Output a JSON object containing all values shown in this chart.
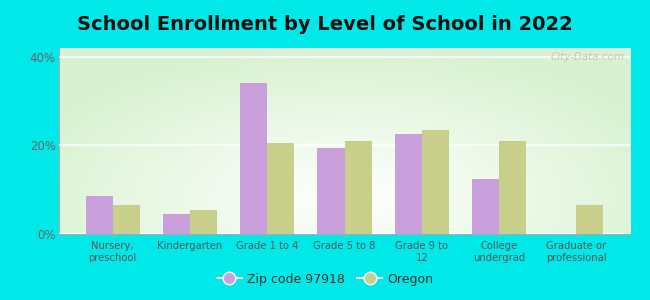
{
  "title": "School Enrollment by Level of School in 2022",
  "categories": [
    "Nursery,\npreschool",
    "Kindergarten",
    "Grade 1 to 4",
    "Grade 5 to 8",
    "Grade 9 to\n12",
    "College\nundergrad",
    "Graduate or\nprofessional"
  ],
  "zip_values": [
    8.5,
    4.5,
    34.0,
    19.5,
    22.5,
    12.5,
    0.0
  ],
  "oregon_values": [
    6.5,
    5.5,
    20.5,
    21.0,
    23.5,
    21.0,
    6.5
  ],
  "zip_color": "#c9a0dc",
  "oregon_color": "#c8cf8a",
  "zip_label": "Zip code 97918",
  "oregon_label": "Oregon",
  "ylim": [
    0,
    42
  ],
  "yticks": [
    0,
    20,
    40
  ],
  "ytick_labels": [
    "0%",
    "20%",
    "40%"
  ],
  "bg_outer": "#00e8e8",
  "title_fontsize": 14,
  "watermark": "City-Data.com"
}
